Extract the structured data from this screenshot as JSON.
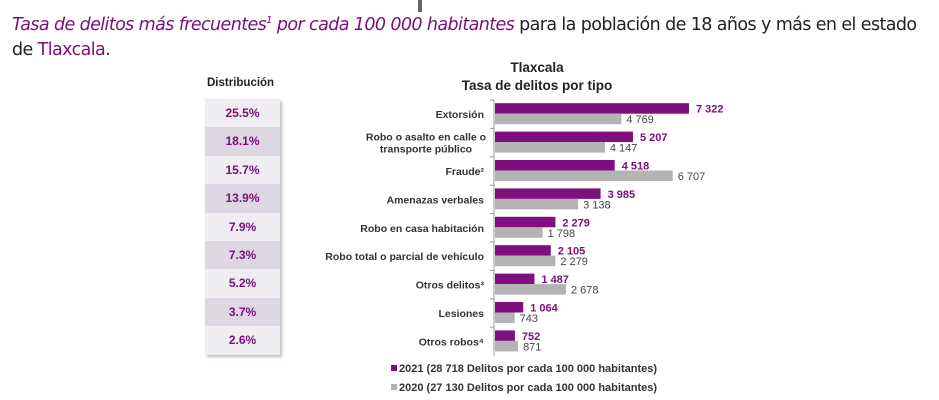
{
  "intro": {
    "italic_part": "Tasa de delitos más frecuentes",
    "sup": "1",
    "italic_part2": " por cada 100 000 habitantes",
    "rest": " para la población de 18 años y más en el estado de ",
    "place": "Tlaxcala",
    "end": "."
  },
  "distribution": {
    "title": "Distribución",
    "values": [
      "25.5%",
      "18.1%",
      "15.7%",
      "13.9%",
      "7.9%",
      "7.3%",
      "5.2%",
      "3.7%",
      "2.6%"
    ]
  },
  "chart_data": {
    "type": "bar",
    "orientation": "horizontal",
    "title": "Tlaxcala",
    "subtitle": "Tasa de delitos por tipo",
    "categories": [
      [
        "Extorsión"
      ],
      [
        "Robo o asalto en calle o",
        "transporte público"
      ],
      [
        "Fraude²"
      ],
      [
        "Amenazas verbales"
      ],
      [
        "Robo en casa habitación"
      ],
      [
        "Robo total o parcial de vehículo"
      ],
      [
        "Otros delitos³"
      ],
      [
        "Lesiones"
      ],
      [
        "Otros robos⁴"
      ]
    ],
    "series": [
      {
        "name": "2021 (28 718 Delitos por cada 100 000 habitantes)",
        "color": "#7f0f7e",
        "values": [
          7322,
          5207,
          4518,
          3985,
          2279,
          2105,
          1487,
          1064,
          752
        ],
        "labels": [
          "7 322",
          "5 207",
          "4 518",
          "3 985",
          "2 279",
          "2 105",
          "1 487",
          "1 064",
          "752"
        ]
      },
      {
        "name": "2020 (27 130 Delitos por cada 100 000 habitantes)",
        "color": "#b3b3b3",
        "values": [
          4769,
          4147,
          6707,
          3138,
          1798,
          2279,
          2678,
          743,
          871
        ],
        "labels": [
          "4 769",
          "4 147",
          "6 707",
          "3 138",
          "1 798",
          "2 279",
          "2 678",
          "743",
          "871"
        ]
      }
    ],
    "xlim": [
      0,
      7400
    ],
    "grid": false,
    "legend": "bottom"
  }
}
